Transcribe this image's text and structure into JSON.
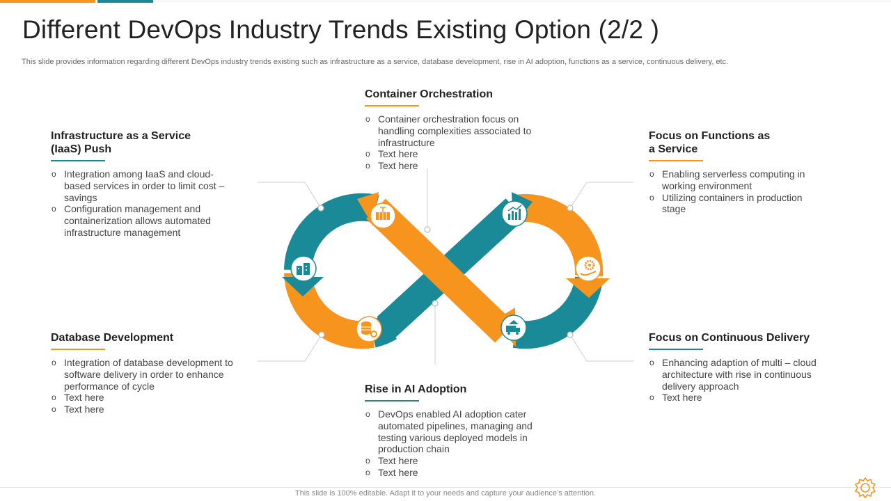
{
  "header": {
    "title": "Different DevOps Industry Trends Existing Option (2/2 )",
    "subtitle": "This slide provides information regarding different DevOps industry trends existing such as infrastructure as a service, database development, rise in AI adoption, functions as a service, continuous delivery, etc."
  },
  "colors": {
    "accent_orange": "#f7941d",
    "accent_teal": "#1a8a99"
  },
  "sections": {
    "iaas": {
      "title_line1": "Infrastructure  as a Service",
      "title_line2": "(IaaS) Push",
      "bullets": [
        "Integration among IaaS and cloud-based services in order to limit cost – savings",
        "Configuration management and containerization allows automated infrastructure management"
      ]
    },
    "container": {
      "title": "Container Orchestration",
      "bullets": [
        "Container orchestration focus on handling complexities associated to infrastructure",
        "Text here",
        "Text here"
      ]
    },
    "faas": {
      "title_line1": "Focus on Functions as",
      "title_line2": "a Service",
      "bullets": [
        "Enabling serverless computing in working environment",
        "Utilizing containers in production stage"
      ]
    },
    "database": {
      "title": "Database Development",
      "bullets": [
        "Integration of database development to software delivery in order to enhance performance of cycle",
        "Text here",
        "Text here"
      ]
    },
    "ai": {
      "title": "Rise in AI Adoption",
      "bullets": [
        "DevOps enabled AI adoption cater automated pipelines, managing and testing various deployed models in production chain",
        "Text here",
        "Text here"
      ]
    },
    "delivery": {
      "title": "Focus on Continuous Delivery",
      "bullets": [
        "Enhancing adaption of multi – cloud architecture with rise in continuous delivery approach",
        "Text here"
      ]
    }
  },
  "icons": [
    "buildings-icon",
    "container-icon",
    "chart-icon",
    "gear-hand-icon",
    "database-gear-icon",
    "truck-icon"
  ],
  "footer": {
    "text": "This slide is 100% editable. Adapt it to your needs and capture your audience’s attention."
  }
}
